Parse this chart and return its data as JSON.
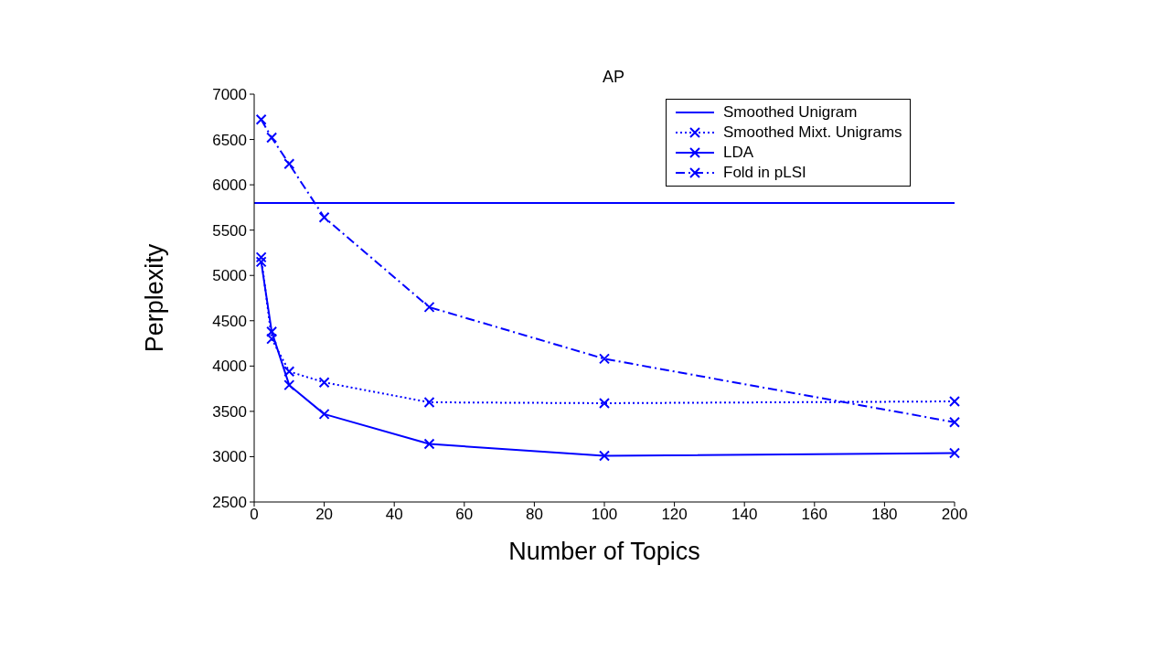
{
  "chart_data": {
    "type": "line",
    "title": "AP",
    "xlabel": "Number of Topics",
    "ylabel": "Perplexity",
    "xlim": [
      0,
      200
    ],
    "xticks": [
      0,
      20,
      40,
      60,
      80,
      100,
      120,
      140,
      160,
      180,
      200
    ],
    "ylim": [
      2500,
      7000
    ],
    "yticks": [
      2500,
      3000,
      3500,
      4000,
      4500,
      5000,
      5500,
      6000,
      6500,
      7000
    ],
    "grid": false,
    "legend": "top right",
    "series": [
      {
        "name": "Smoothed Unigram",
        "color": "#0000ff",
        "line_style": "solid",
        "marker": "none",
        "x": [
          0,
          200
        ],
        "values": [
          5800,
          5800
        ]
      },
      {
        "name": "Smoothed Mixt. Unigrams",
        "color": "#0000ff",
        "line_style": "dotted",
        "marker": "cross",
        "x": [
          2,
          5,
          10,
          20,
          50,
          100,
          200
        ],
        "values": [
          5200,
          4300,
          3940,
          3820,
          3600,
          3590,
          3610
        ]
      },
      {
        "name": "LDA",
        "color": "#0000ff",
        "line_style": "solid",
        "marker": "cross",
        "x": [
          2,
          5,
          10,
          20,
          50,
          100,
          200
        ],
        "values": [
          5150,
          4380,
          3790,
          3470,
          3140,
          3010,
          3040
        ]
      },
      {
        "name": "Fold in pLSI",
        "color": "#0000ff",
        "line_style": "dashed",
        "marker": "cross",
        "x": [
          2,
          5,
          10,
          20,
          50,
          100,
          200
        ],
        "values": [
          6720,
          6520,
          6230,
          5640,
          4650,
          4080,
          3380
        ]
      }
    ]
  }
}
